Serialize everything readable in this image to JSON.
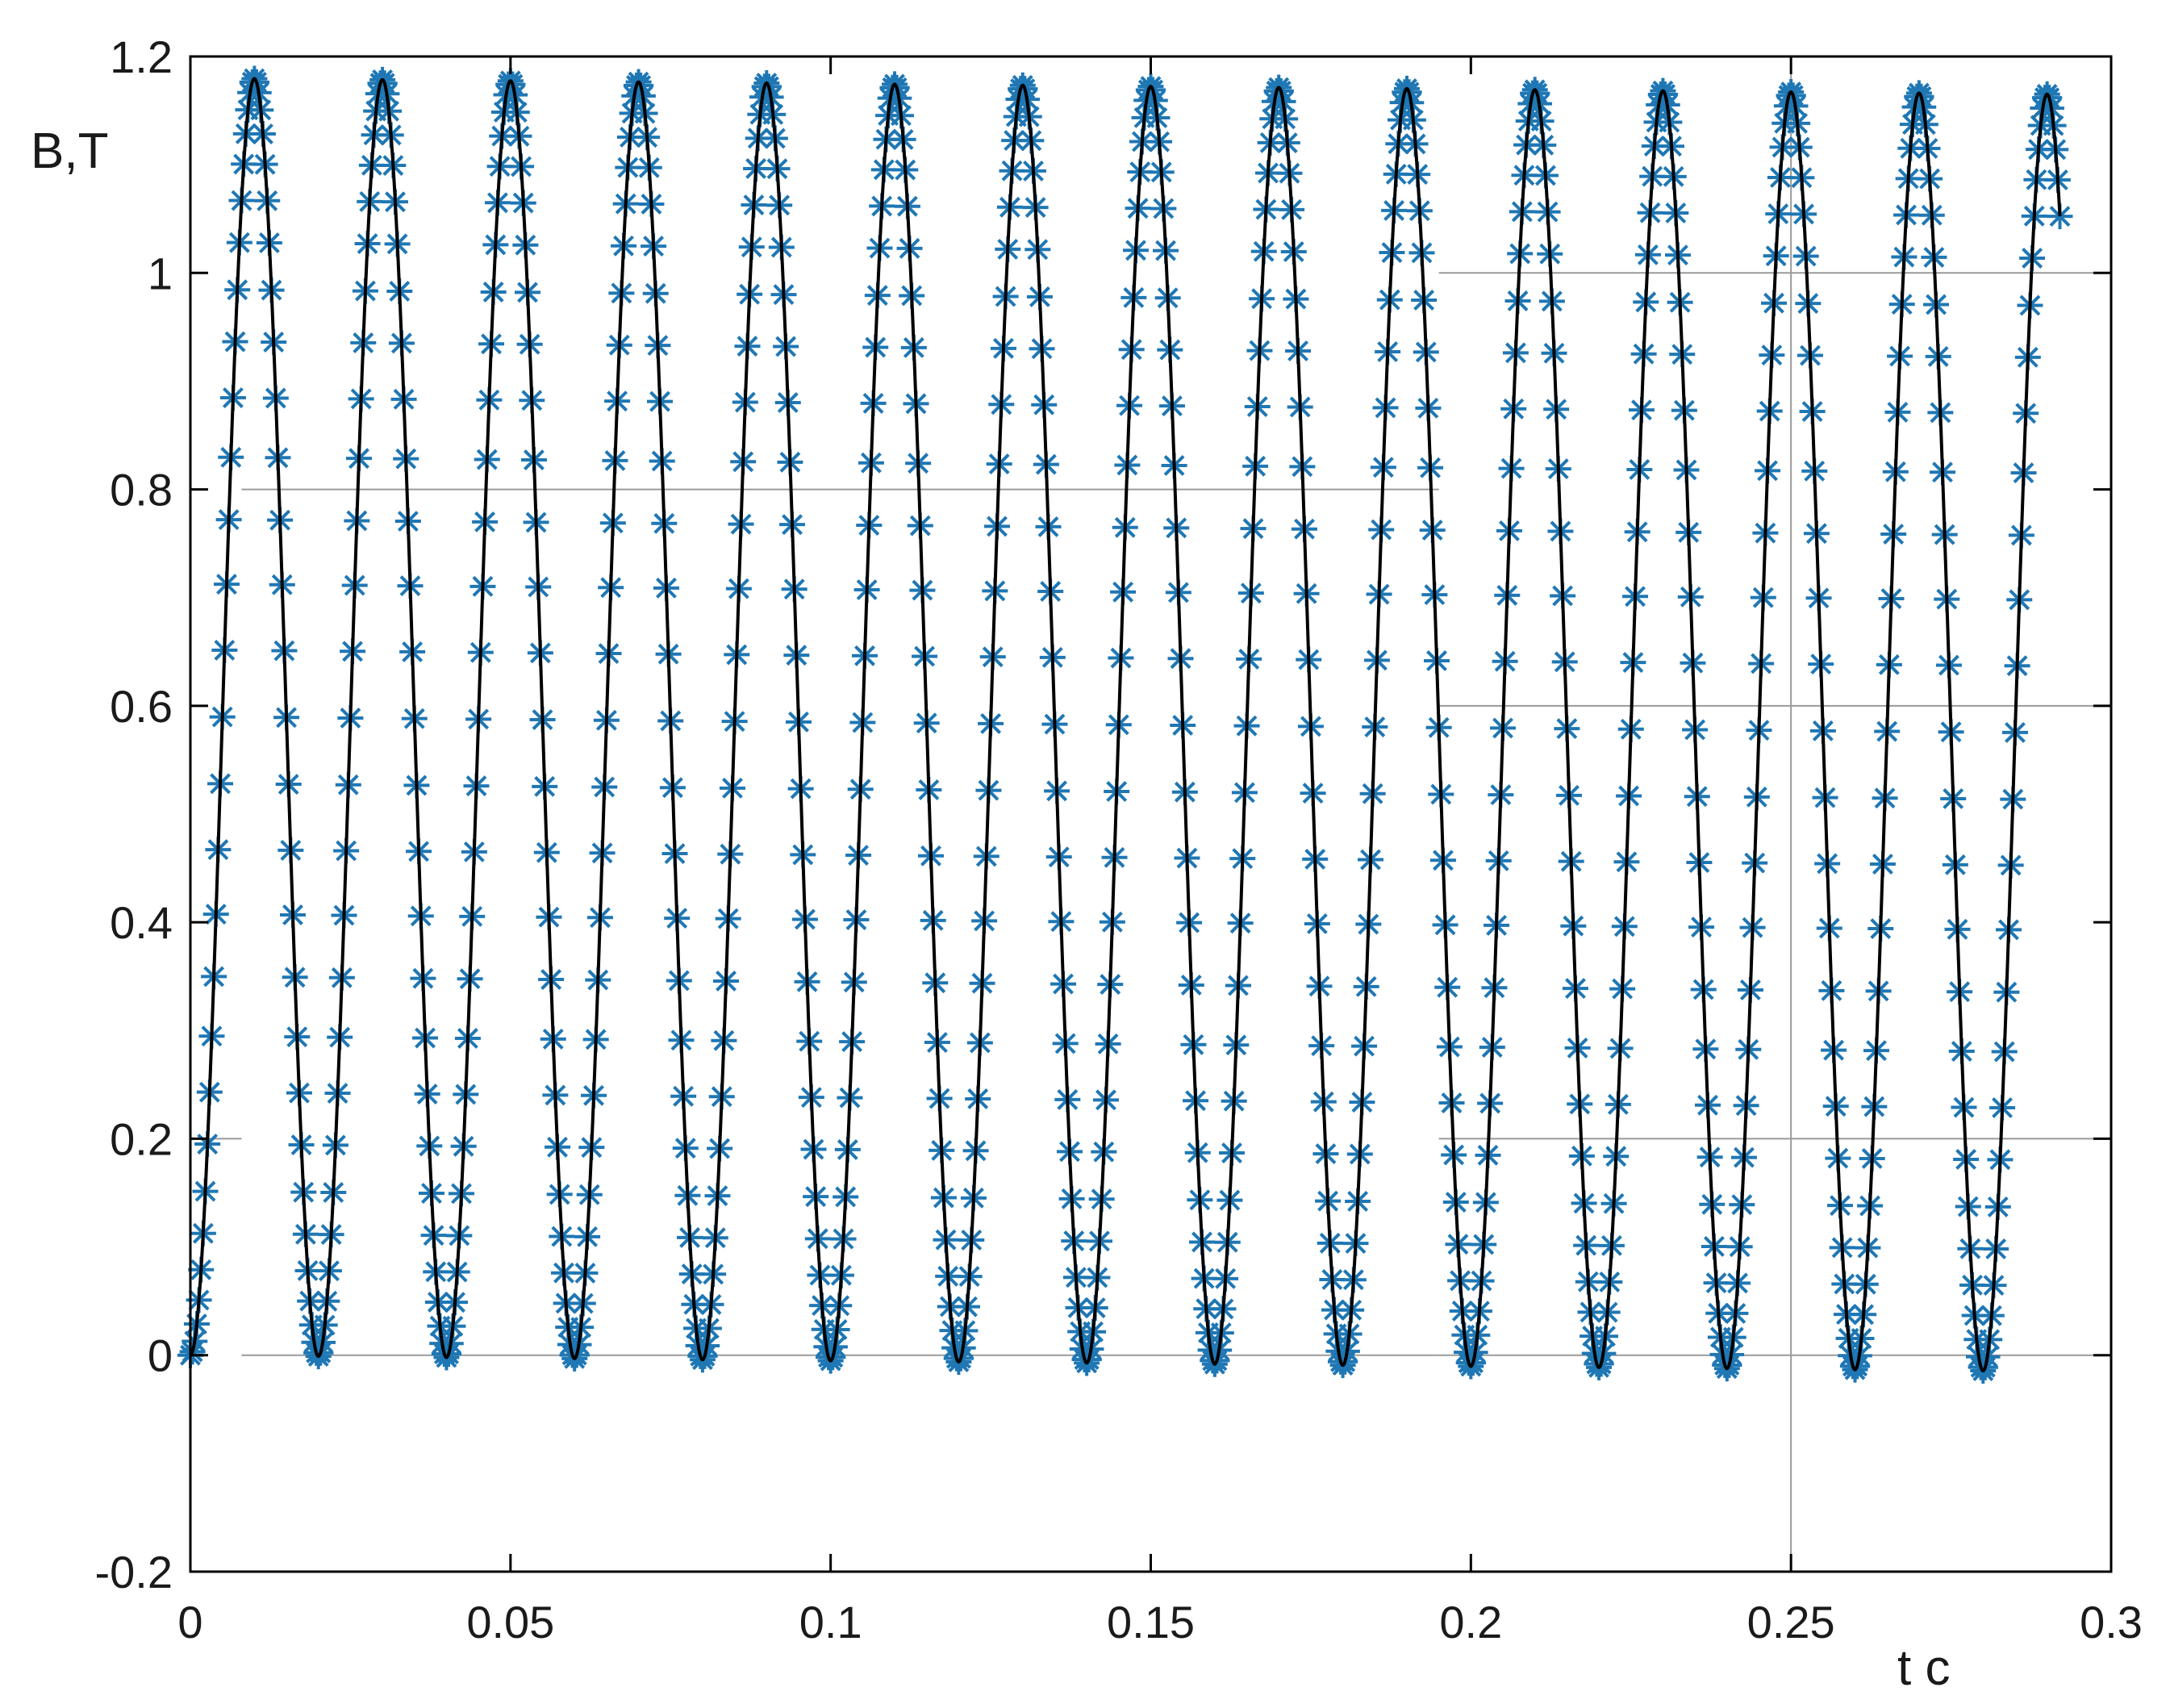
{
  "chart_data": {
    "type": "line",
    "title": "",
    "xlabel": "t c",
    "ylabel": "B,T",
    "xlim": [
      0,
      0.3
    ],
    "ylim": [
      -0.2,
      1.2
    ],
    "x_ticks": [
      "0",
      "0.05",
      "0.1",
      "0.15",
      "0.2",
      "0.25",
      "0.3"
    ],
    "y_ticks": [
      "-0.2",
      "0",
      "0.2",
      "0.4",
      "0.6",
      "0.8",
      "1",
      "1.2"
    ],
    "grid": "partial",
    "legend": "none",
    "colors": {
      "line": "#000000",
      "marker": "#1f77b4",
      "grid": "#9a9a9a",
      "axes": "#000000"
    },
    "series": [
      {
        "style": "line",
        "x_range": [
          0,
          0.292
        ],
        "frequency_hz": 50,
        "peak_start": 1.18,
        "peak_end": 1.165,
        "trough_start": 0,
        "trough_end": -0.015
      },
      {
        "style": "markers",
        "marker": "asterisk",
        "x_range": [
          0,
          0.292
        ],
        "frequency_hz": 50,
        "points_per_period": 60,
        "peak_start": 1.18,
        "peak_end": 1.165,
        "trough_start": 0,
        "trough_end": -0.015
      }
    ]
  }
}
